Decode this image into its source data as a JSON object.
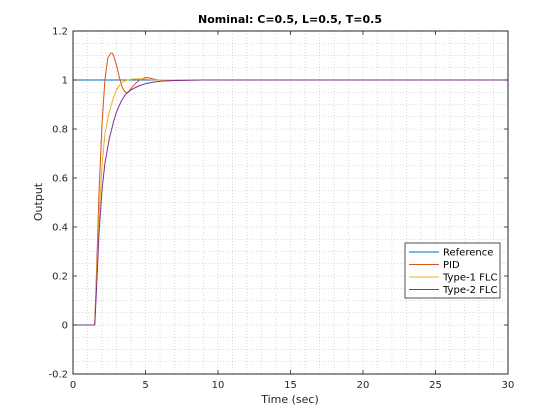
{
  "chart_data": {
    "type": "line",
    "title": "Nominal: C=0.5, L=0.5, T=0.5",
    "xlabel": "Time (sec)",
    "ylabel": "Output",
    "xlim": [
      0,
      30
    ],
    "ylim": [
      -0.2,
      1.2
    ],
    "xticks": [
      0,
      5,
      10,
      15,
      20,
      25,
      30
    ],
    "yticks": [
      -0.2,
      0,
      0.2,
      0.4,
      0.6,
      0.8,
      1,
      1.2
    ],
    "xtick_labels": [
      "0",
      "5",
      "10",
      "15",
      "20",
      "25",
      "30"
    ],
    "ytick_labels": [
      "-0.2",
      "0",
      "0.2",
      "0.4",
      "0.6",
      "0.8",
      "1",
      "1.2"
    ],
    "grid": "minor dotted",
    "legend_position": "lower-right",
    "series": [
      {
        "name": "Reference",
        "color": "#0072bd",
        "x": [
          0,
          30
        ],
        "y": [
          1,
          1
        ]
      },
      {
        "name": "PID",
        "color": "#d95319",
        "x": [
          0,
          1.5,
          1.6,
          1.8,
          2.0,
          2.2,
          2.4,
          2.6,
          2.7,
          2.8,
          3.0,
          3.2,
          3.4,
          3.6,
          3.8,
          4.0,
          4.3,
          4.6,
          5.0,
          5.3,
          5.6,
          6.0,
          6.5,
          7.0,
          8.0,
          10.0,
          12.0,
          15.0,
          17.3
        ],
        "y": [
          0,
          0,
          0.18,
          0.55,
          0.82,
          1.0,
          1.09,
          1.11,
          1.11,
          1.1,
          1.06,
          1.01,
          0.97,
          0.95,
          0.95,
          0.965,
          0.985,
          1.0,
          1.01,
          1.008,
          1.003,
          0.999,
          0.997,
          0.998,
          1.0,
          1.0,
          1.0,
          1.0,
          1.0
        ]
      },
      {
        "name": "Type-1 FLC",
        "color": "#edb120",
        "x": [
          0,
          1.5,
          1.6,
          1.8,
          2.0,
          2.2,
          2.5,
          2.8,
          3.0,
          3.3,
          3.6,
          4.0,
          4.5,
          5.0,
          5.5,
          6.0,
          7.0,
          8.0,
          10.0,
          12.0,
          15.0,
          17.3
        ],
        "y": [
          0,
          0,
          0.15,
          0.45,
          0.65,
          0.78,
          0.87,
          0.93,
          0.96,
          0.985,
          0.997,
          1.003,
          1.005,
          1.003,
          1.001,
          1.0,
          1.0,
          1.0,
          1.0,
          1.0,
          1.0,
          1.0
        ]
      },
      {
        "name": "Type-2 FLC",
        "color": "#7e2f8e",
        "x": [
          0,
          1.5,
          1.6,
          1.8,
          2.0,
          2.2,
          2.5,
          2.8,
          3.0,
          3.3,
          3.6,
          4.0,
          4.5,
          5.0,
          5.5,
          6.0,
          6.5,
          7.0,
          8.0,
          9.0,
          10.0,
          12.0,
          15.0,
          20.0,
          25.0,
          30.0
        ],
        "y": [
          0,
          0,
          0.12,
          0.38,
          0.55,
          0.66,
          0.76,
          0.83,
          0.87,
          0.91,
          0.94,
          0.96,
          0.975,
          0.985,
          0.991,
          0.995,
          0.997,
          0.998,
          0.999,
          1.0,
          1.0,
          1.0,
          1.0,
          1.0,
          1.0,
          1.0
        ]
      }
    ]
  }
}
